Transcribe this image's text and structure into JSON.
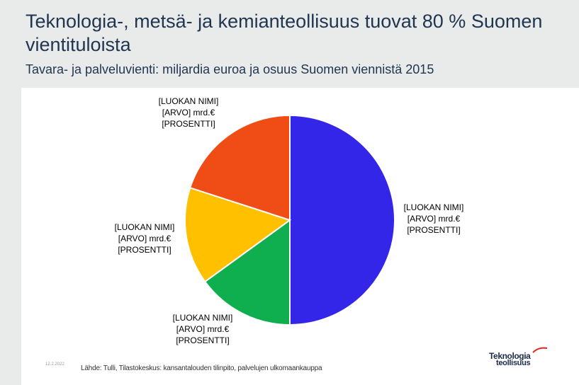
{
  "title": "Teknologia-, metsä- ja kemianteollisuus tuovat 80 % Suomen vientituloista",
  "subtitle": "Tavara- ja palveluvienti: miljardia euroa ja osuus Suomen viennistä 2015",
  "source": "Lähde: Tulli, Tilastokeskus: kansantalouden tilinpito, palvelujen ulkomaankauppa",
  "date": "12.2.2022",
  "logo": {
    "line1": "Teknologia",
    "line2": "teollisuus",
    "swoosh_color": "#e2231a"
  },
  "colors": {
    "background": "#e9eaea",
    "panel": "#ffffff",
    "title": "#1f3550"
  },
  "chart_data": {
    "type": "pie",
    "title": "",
    "start_angle_deg": 0,
    "direction": "clockwise",
    "slices": [
      {
        "value": 50,
        "color": "#3426e9",
        "label": [
          "[LUOKAN NIMI]",
          "[ARVO] mrd.€",
          "[PROSENTTI]"
        ]
      },
      {
        "value": 15,
        "color": "#0fae4e",
        "label": [
          "[LUOKAN NIMI]",
          "[ARVO] mrd.€",
          "[PROSENTTI]"
        ]
      },
      {
        "value": 15,
        "color": "#ffc000",
        "label": [
          "[LUOKAN NIMI]",
          "[ARVO] mrd.€",
          "[PROSENTTI]"
        ]
      },
      {
        "value": 20,
        "color": "#f04c16",
        "label": [
          "[LUOKAN NIMI]",
          "[ARVO] mrd.€",
          "[PROSENTTI]"
        ]
      }
    ]
  }
}
